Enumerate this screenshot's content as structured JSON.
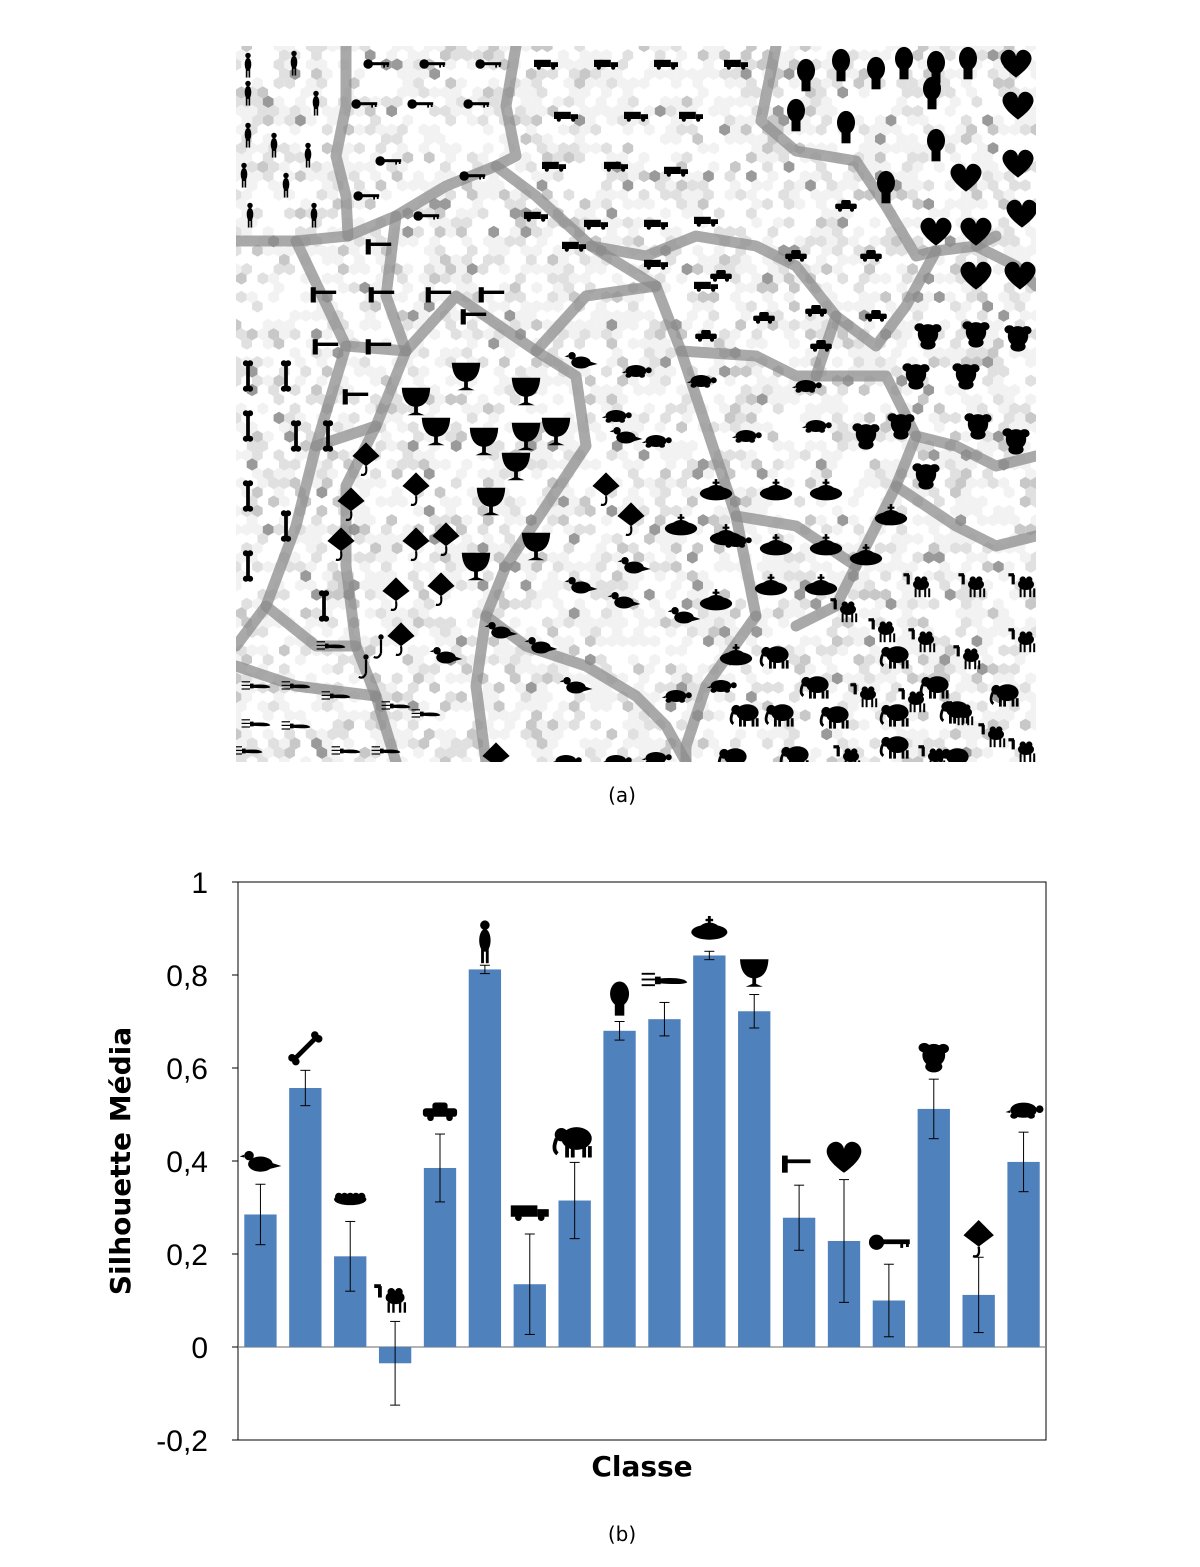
{
  "figure": {
    "caption_a": "(a)",
    "caption_b": "(b)"
  },
  "som_map": {
    "background_colors": [
      "#ffffff",
      "#f2f2f2",
      "#e0e0e0",
      "#c8c8c8",
      "#9a9a9a",
      "#6a6a6a"
    ],
    "glyph_color": "#000000"
  },
  "chart_data": {
    "type": "bar",
    "xlabel": "Classe",
    "ylabel": "Silhouette Média",
    "ylim": [
      -0.2,
      1.0
    ],
    "yticks": [
      "-0,2",
      "0",
      "0,2",
      "0,4",
      "0,6",
      "0,8",
      "1"
    ],
    "grid": false,
    "bar_color": "#4f81bd",
    "categories": [
      "bird-icon",
      "bone-icon",
      "flatfish-icon",
      "camel-icon",
      "car-icon",
      "person-icon",
      "truck-icon",
      "elephant-icon",
      "head-icon",
      "fork-icon",
      "bell-icon",
      "cup-icon",
      "hammer-icon",
      "heart-icon",
      "key-icon",
      "dog-head-icon",
      "stingray-icon",
      "turtle-icon"
    ],
    "values": [
      0.285,
      0.557,
      0.195,
      -0.035,
      0.385,
      0.812,
      0.135,
      0.315,
      0.68,
      0.705,
      0.842,
      0.722,
      0.278,
      0.228,
      0.1,
      0.512,
      0.112,
      0.398
    ],
    "errors": [
      0.065,
      0.038,
      0.075,
      0.09,
      0.073,
      0.009,
      0.108,
      0.082,
      0.02,
      0.036,
      0.009,
      0.036,
      0.07,
      0.132,
      0.078,
      0.064,
      0.081,
      0.064
    ]
  }
}
